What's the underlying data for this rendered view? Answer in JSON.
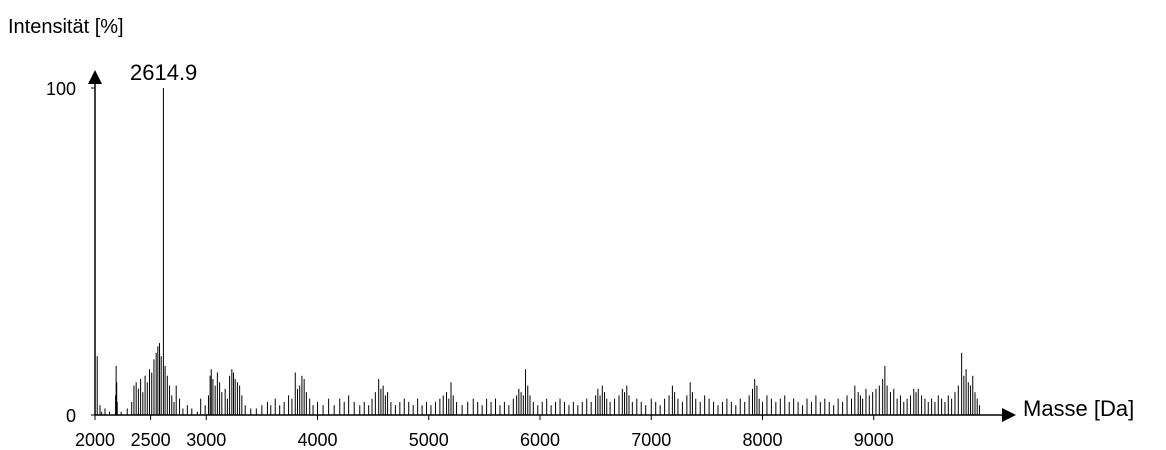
{
  "chart_data": {
    "type": "bar",
    "ylabel": "Intensität [%]",
    "xlabel": "Masse [Da]",
    "xlim": [
      2000,
      10000
    ],
    "ylim": [
      0,
      100
    ],
    "x_ticks": [
      {
        "value": 2000,
        "label": "2000"
      },
      {
        "value": 2500,
        "label": "2500"
      },
      {
        "value": 3000,
        "label": "3000"
      },
      {
        "value": 4000,
        "label": "4000"
      },
      {
        "value": 5000,
        "label": "5000"
      },
      {
        "value": 6000,
        "label": "6000"
      },
      {
        "value": 7000,
        "label": "7000"
      },
      {
        "value": 8000,
        "label": "8000"
      },
      {
        "value": 9000,
        "label": "9000"
      }
    ],
    "y_ticks": [
      {
        "value": 0,
        "label": "0"
      },
      {
        "value": 100,
        "label": "100"
      }
    ],
    "peak_label": {
      "x": 2614.9,
      "y": 100,
      "text": "2614.9"
    },
    "grid": false,
    "peaks": [
      [
        2020,
        18
      ],
      [
        2045,
        3
      ],
      [
        2060,
        1
      ],
      [
        2090,
        2
      ],
      [
        2130,
        1
      ],
      [
        2185,
        6
      ],
      [
        2190,
        15
      ],
      [
        2195,
        10
      ],
      [
        2200,
        4
      ],
      [
        2235,
        1
      ],
      [
        2290,
        2
      ],
      [
        2330,
        4
      ],
      [
        2350,
        9
      ],
      [
        2370,
        10
      ],
      [
        2390,
        8
      ],
      [
        2410,
        11
      ],
      [
        2430,
        7
      ],
      [
        2450,
        12
      ],
      [
        2470,
        10
      ],
      [
        2490,
        14
      ],
      [
        2510,
        13
      ],
      [
        2530,
        17
      ],
      [
        2550,
        19
      ],
      [
        2565,
        21
      ],
      [
        2580,
        22
      ],
      [
        2595,
        18
      ],
      [
        2614.9,
        100
      ],
      [
        2630,
        15
      ],
      [
        2650,
        12
      ],
      [
        2670,
        9
      ],
      [
        2690,
        6
      ],
      [
        2710,
        4
      ],
      [
        2730,
        9
      ],
      [
        2760,
        5
      ],
      [
        2790,
        2
      ],
      [
        2830,
        3
      ],
      [
        2870,
        2
      ],
      [
        2920,
        1
      ],
      [
        2950,
        5
      ],
      [
        2990,
        3
      ],
      [
        3020,
        6
      ],
      [
        3035,
        12
      ],
      [
        3045,
        14
      ],
      [
        3060,
        11
      ],
      [
        3080,
        9
      ],
      [
        3100,
        13
      ],
      [
        3120,
        10
      ],
      [
        3140,
        7
      ],
      [
        3170,
        8
      ],
      [
        3190,
        5
      ],
      [
        3210,
        12
      ],
      [
        3230,
        14
      ],
      [
        3245,
        13
      ],
      [
        3260,
        11
      ],
      [
        3280,
        10
      ],
      [
        3300,
        9
      ],
      [
        3320,
        6
      ],
      [
        3350,
        3
      ],
      [
        3400,
        2
      ],
      [
        3450,
        2
      ],
      [
        3500,
        3
      ],
      [
        3550,
        4
      ],
      [
        3580,
        3
      ],
      [
        3620,
        5
      ],
      [
        3660,
        3
      ],
      [
        3700,
        4
      ],
      [
        3740,
        6
      ],
      [
        3770,
        5
      ],
      [
        3800,
        13
      ],
      [
        3820,
        8
      ],
      [
        3840,
        9
      ],
      [
        3860,
        12
      ],
      [
        3880,
        11
      ],
      [
        3900,
        7
      ],
      [
        3930,
        5
      ],
      [
        3960,
        3
      ],
      [
        4000,
        4
      ],
      [
        4050,
        3
      ],
      [
        4100,
        5
      ],
      [
        4150,
        3
      ],
      [
        4200,
        5
      ],
      [
        4240,
        4
      ],
      [
        4280,
        6
      ],
      [
        4330,
        4
      ],
      [
        4380,
        3
      ],
      [
        4420,
        4
      ],
      [
        4460,
        3
      ],
      [
        4490,
        5
      ],
      [
        4520,
        7
      ],
      [
        4550,
        11
      ],
      [
        4570,
        8
      ],
      [
        4590,
        9
      ],
      [
        4610,
        6
      ],
      [
        4630,
        7
      ],
      [
        4660,
        4
      ],
      [
        4700,
        3
      ],
      [
        4740,
        4
      ],
      [
        4780,
        5
      ],
      [
        4820,
        4
      ],
      [
        4860,
        3
      ],
      [
        4900,
        5
      ],
      [
        4940,
        3
      ],
      [
        4980,
        4
      ],
      [
        5020,
        3
      ],
      [
        5060,
        4
      ],
      [
        5100,
        5
      ],
      [
        5130,
        6
      ],
      [
        5160,
        7
      ],
      [
        5180,
        5
      ],
      [
        5200,
        10
      ],
      [
        5220,
        6
      ],
      [
        5250,
        4
      ],
      [
        5300,
        3
      ],
      [
        5350,
        4
      ],
      [
        5400,
        5
      ],
      [
        5440,
        4
      ],
      [
        5480,
        3
      ],
      [
        5520,
        5
      ],
      [
        5560,
        4
      ],
      [
        5600,
        5
      ],
      [
        5640,
        3
      ],
      [
        5680,
        4
      ],
      [
        5720,
        3
      ],
      [
        5760,
        5
      ],
      [
        5790,
        6
      ],
      [
        5810,
        8
      ],
      [
        5830,
        7
      ],
      [
        5850,
        6
      ],
      [
        5870,
        14
      ],
      [
        5890,
        9
      ],
      [
        5910,
        6
      ],
      [
        5940,
        4
      ],
      [
        5980,
        3
      ],
      [
        6020,
        4
      ],
      [
        6060,
        5
      ],
      [
        6100,
        3
      ],
      [
        6140,
        4
      ],
      [
        6180,
        5
      ],
      [
        6220,
        4
      ],
      [
        6260,
        3
      ],
      [
        6300,
        4
      ],
      [
        6340,
        3
      ],
      [
        6380,
        4
      ],
      [
        6420,
        5
      ],
      [
        6460,
        4
      ],
      [
        6500,
        6
      ],
      [
        6520,
        8
      ],
      [
        6540,
        6
      ],
      [
        6560,
        9
      ],
      [
        6580,
        7
      ],
      [
        6600,
        5
      ],
      [
        6630,
        4
      ],
      [
        6670,
        5
      ],
      [
        6710,
        6
      ],
      [
        6740,
        8
      ],
      [
        6760,
        7
      ],
      [
        6780,
        9
      ],
      [
        6800,
        6
      ],
      [
        6830,
        4
      ],
      [
        6870,
        5
      ],
      [
        6910,
        4
      ],
      [
        6950,
        3
      ],
      [
        7000,
        5
      ],
      [
        7040,
        4
      ],
      [
        7080,
        3
      ],
      [
        7120,
        5
      ],
      [
        7160,
        6
      ],
      [
        7190,
        9
      ],
      [
        7210,
        7
      ],
      [
        7240,
        5
      ],
      [
        7280,
        4
      ],
      [
        7320,
        6
      ],
      [
        7350,
        10
      ],
      [
        7370,
        7
      ],
      [
        7400,
        5
      ],
      [
        7440,
        4
      ],
      [
        7480,
        6
      ],
      [
        7520,
        5
      ],
      [
        7560,
        4
      ],
      [
        7600,
        3
      ],
      [
        7640,
        4
      ],
      [
        7680,
        5
      ],
      [
        7720,
        4
      ],
      [
        7760,
        3
      ],
      [
        7800,
        5
      ],
      [
        7840,
        4
      ],
      [
        7880,
        6
      ],
      [
        7910,
        8
      ],
      [
        7930,
        11
      ],
      [
        7950,
        9
      ],
      [
        7970,
        5
      ],
      [
        8000,
        4
      ],
      [
        8040,
        6
      ],
      [
        8080,
        5
      ],
      [
        8120,
        4
      ],
      [
        8160,
        5
      ],
      [
        8200,
        6
      ],
      [
        8240,
        4
      ],
      [
        8280,
        5
      ],
      [
        8320,
        4
      ],
      [
        8360,
        3
      ],
      [
        8400,
        5
      ],
      [
        8440,
        4
      ],
      [
        8480,
        6
      ],
      [
        8520,
        4
      ],
      [
        8560,
        5
      ],
      [
        8600,
        4
      ],
      [
        8640,
        3
      ],
      [
        8680,
        5
      ],
      [
        8720,
        4
      ],
      [
        8760,
        6
      ],
      [
        8800,
        5
      ],
      [
        8830,
        9
      ],
      [
        8860,
        7
      ],
      [
        8880,
        6
      ],
      [
        8900,
        5
      ],
      [
        8930,
        8
      ],
      [
        8960,
        6
      ],
      [
        8990,
        7
      ],
      [
        9020,
        8
      ],
      [
        9050,
        9
      ],
      [
        9080,
        11
      ],
      [
        9100,
        15
      ],
      [
        9120,
        9
      ],
      [
        9150,
        7
      ],
      [
        9180,
        8
      ],
      [
        9210,
        5
      ],
      [
        9240,
        6
      ],
      [
        9270,
        4
      ],
      [
        9300,
        5
      ],
      [
        9330,
        6
      ],
      [
        9360,
        8
      ],
      [
        9380,
        7
      ],
      [
        9400,
        8
      ],
      [
        9430,
        6
      ],
      [
        9460,
        5
      ],
      [
        9490,
        4
      ],
      [
        9520,
        5
      ],
      [
        9550,
        4
      ],
      [
        9580,
        6
      ],
      [
        9610,
        5
      ],
      [
        9640,
        4
      ],
      [
        9670,
        6
      ],
      [
        9700,
        5
      ],
      [
        9730,
        7
      ],
      [
        9760,
        9
      ],
      [
        9790,
        19
      ],
      [
        9810,
        12
      ],
      [
        9830,
        14
      ],
      [
        9850,
        10
      ],
      [
        9870,
        9
      ],
      [
        9890,
        12
      ],
      [
        9910,
        7
      ],
      [
        9930,
        5
      ],
      [
        9950,
        3
      ]
    ]
  }
}
